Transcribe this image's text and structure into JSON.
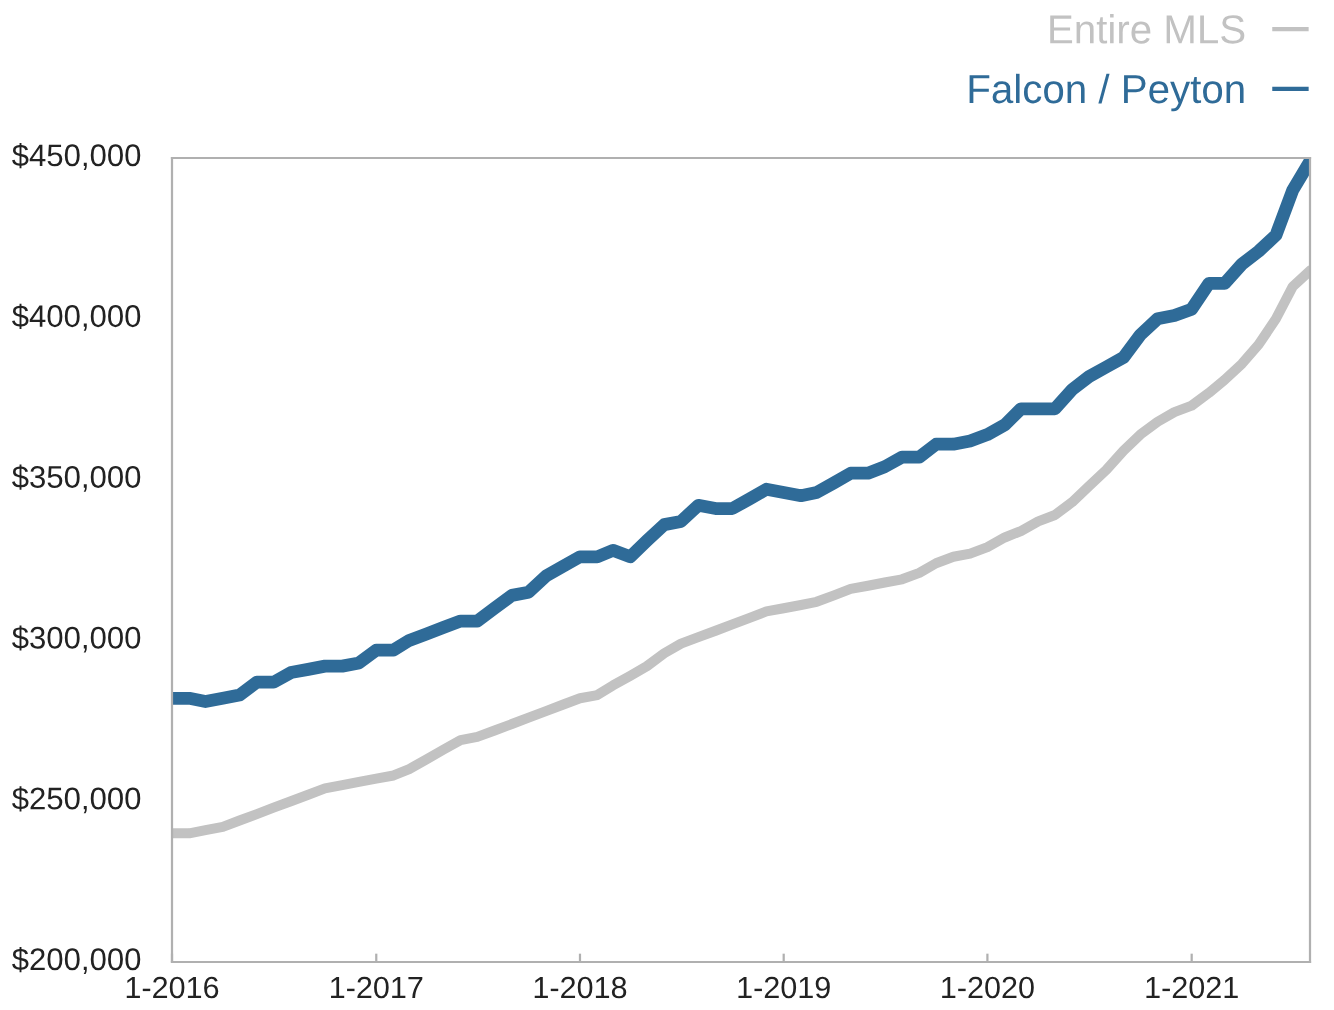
{
  "chart_data": {
    "type": "line",
    "x": [
      "2016-01",
      "2016-02",
      "2016-03",
      "2016-04",
      "2016-05",
      "2016-06",
      "2016-07",
      "2016-08",
      "2016-09",
      "2016-10",
      "2016-11",
      "2016-12",
      "2017-01",
      "2017-02",
      "2017-03",
      "2017-04",
      "2017-05",
      "2017-06",
      "2017-07",
      "2017-08",
      "2017-09",
      "2017-10",
      "2017-11",
      "2017-12",
      "2018-01",
      "2018-02",
      "2018-03",
      "2018-04",
      "2018-05",
      "2018-06",
      "2018-07",
      "2018-08",
      "2018-09",
      "2018-10",
      "2018-11",
      "2018-12",
      "2019-01",
      "2019-02",
      "2019-03",
      "2019-04",
      "2019-05",
      "2019-06",
      "2019-07",
      "2019-08",
      "2019-09",
      "2019-10",
      "2019-11",
      "2019-12",
      "2020-01",
      "2020-02",
      "2020-03",
      "2020-04",
      "2020-05",
      "2020-06",
      "2020-07",
      "2020-08",
      "2020-09",
      "2020-10",
      "2020-11",
      "2020-12",
      "2021-01",
      "2021-02",
      "2021-03",
      "2021-04",
      "2021-05",
      "2021-06",
      "2021-07",
      "2021-08"
    ],
    "series": [
      {
        "name": "Entire MLS",
        "color": "#c2c2c2",
        "values": [
          240000,
          240000,
          241000,
          242000,
          244000,
          246000,
          248000,
          250000,
          252000,
          254000,
          255000,
          256000,
          257000,
          258000,
          260000,
          263000,
          266000,
          269000,
          270000,
          272000,
          274000,
          276000,
          278000,
          280000,
          282000,
          283000,
          286000,
          289000,
          292000,
          296000,
          299000,
          301000,
          303000,
          305000,
          307000,
          309000,
          310000,
          311000,
          312000,
          314000,
          316000,
          317000,
          318000,
          319000,
          321000,
          324000,
          326000,
          327000,
          329000,
          332000,
          334000,
          337000,
          339000,
          343000,
          348000,
          353000,
          359000,
          364000,
          368000,
          371000,
          373000,
          377000,
          381000,
          386000,
          392000,
          400000,
          410000,
          415000
        ]
      },
      {
        "name": "Falcon / Peyton",
        "color": "#2f6b98",
        "values": [
          282000,
          282000,
          281000,
          282000,
          283000,
          287000,
          287000,
          290000,
          291000,
          292000,
          292000,
          293000,
          297000,
          297000,
          300000,
          302000,
          304000,
          306000,
          306000,
          310000,
          314000,
          315000,
          320000,
          323000,
          326000,
          326000,
          328000,
          326000,
          331000,
          336000,
          337000,
          342000,
          341000,
          341000,
          344000,
          347000,
          346000,
          345000,
          346000,
          349000,
          352000,
          352000,
          354000,
          357000,
          357000,
          361000,
          361000,
          362000,
          364000,
          367000,
          372000,
          372000,
          372000,
          378000,
          382000,
          385000,
          388000,
          395000,
          400000,
          401000,
          403000,
          411000,
          411000,
          417000,
          421000,
          426000,
          440000,
          449000
        ]
      }
    ],
    "xlim": [
      "2016-01",
      "2021-08"
    ],
    "xticks": [
      {
        "value": "2016-01",
        "label": "1-2016"
      },
      {
        "value": "2017-01",
        "label": "1-2017"
      },
      {
        "value": "2018-01",
        "label": "1-2018"
      },
      {
        "value": "2019-01",
        "label": "1-2019"
      },
      {
        "value": "2020-01",
        "label": "1-2020"
      },
      {
        "value": "2021-01",
        "label": "1-2021"
      }
    ],
    "ylim": [
      200000,
      450000
    ],
    "yticks": [
      {
        "value": 200000,
        "label": "$200,000"
      },
      {
        "value": 250000,
        "label": "$250,000"
      },
      {
        "value": 300000,
        "label": "$300,000"
      },
      {
        "value": 350000,
        "label": "$350,000"
      },
      {
        "value": 400000,
        "label": "$400,000"
      },
      {
        "value": 450000,
        "label": "$450,000"
      }
    ],
    "legend": "top right",
    "line_style": "solid"
  }
}
